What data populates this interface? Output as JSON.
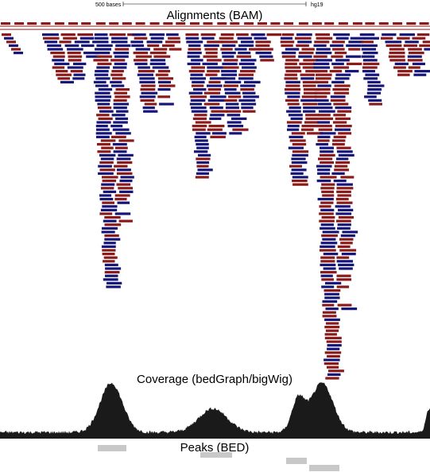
{
  "browser": {
    "scale_label": "500 bases",
    "assembly": "hg19"
  },
  "tracks": {
    "alignments": {
      "title": "Alignments (BAM)"
    },
    "coverage": {
      "title": "Coverage (bedGraph/bigWig)"
    },
    "peaks": {
      "title": "Peaks (BED)"
    }
  },
  "colors": {
    "forward_read": "#8b1a1a",
    "reverse_read": "#15157a",
    "coverage": "#1a1a1a",
    "peak": "#c8c8c8"
  }
}
